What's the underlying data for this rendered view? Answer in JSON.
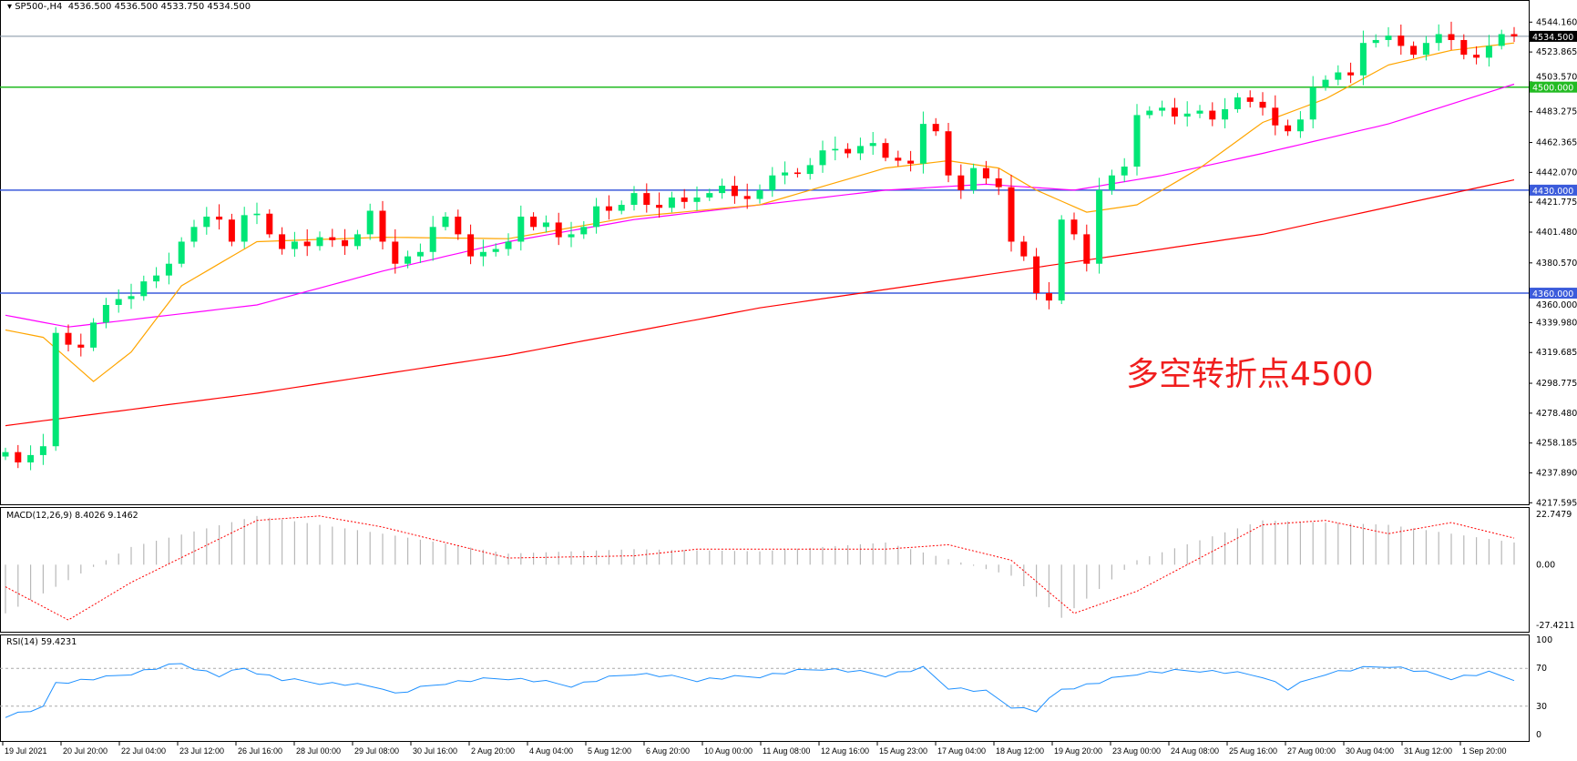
{
  "header": {
    "symbol": "SP500-,H4",
    "ohlc": "4536.500 4536.500 4533.750 4534.500"
  },
  "annotation": "多空转折点4500",
  "colors": {
    "bull": "#00e676",
    "bear": "#ff0000",
    "ma_fast": "#ffa500",
    "ma_mid": "#ff00ff",
    "ma_slow": "#ff0000",
    "support": "#3b5bdb",
    "pivot": "#22bb22",
    "price_line": "#8090a0",
    "macd_hist": "#b8b8b8",
    "macd_signal": "#ff0000",
    "rsi": "#1e90ff"
  },
  "chart_data": [
    {
      "type": "candlestick",
      "title": "SP500-,H4",
      "ylim": [
        4217.595,
        4544.16
      ],
      "y_ticks": [
        "4544.160",
        "4523.865",
        "4503.570",
        "4483.275",
        "4462.365",
        "4442.070",
        "4421.775",
        "4401.480",
        "4380.570",
        "4360.000",
        "4339.980",
        "4319.685",
        "4298.775",
        "4278.480",
        "4258.185",
        "4237.890",
        "4217.595"
      ],
      "x_ticks": [
        "19 Jul 2021",
        "20 Jul 20:00",
        "22 Jul 04:00",
        "23 Jul 12:00",
        "26 Jul 16:00",
        "28 Jul 00:00",
        "29 Jul 08:00",
        "30 Jul 16:00",
        "2 Aug 20:00",
        "4 Aug 04:00",
        "5 Aug 12:00",
        "6 Aug 20:00",
        "10 Aug 00:00",
        "11 Aug 08:00",
        "12 Aug 16:00",
        "15 Aug 23:00",
        "17 Aug 04:00",
        "18 Aug 12:00",
        "19 Aug 20:00",
        "23 Aug 00:00",
        "24 Aug 08:00",
        "25 Aug 16:00",
        "27 Aug 00:00",
        "30 Aug 04:00",
        "31 Aug 12:00",
        "1 Sep 20:00"
      ],
      "closes": [
        4252,
        4245,
        4250,
        4256,
        4333,
        4325,
        4323,
        4340,
        4352,
        4356,
        4358,
        4368,
        4372,
        4380,
        4395,
        4405,
        4412,
        4410,
        4395,
        4413,
        4414,
        4400,
        4390,
        4395,
        4392,
        4398,
        4396,
        4392,
        4400,
        4416,
        4395,
        4380,
        4385,
        4388,
        4405,
        4412,
        4400,
        4385,
        4388,
        4390,
        4395,
        4412,
        4405,
        4408,
        4398,
        4400,
        4405,
        4419,
        4416,
        4420,
        4428,
        4420,
        4418,
        4425,
        4422,
        4425,
        4428,
        4433,
        4426,
        4424,
        4430,
        4440,
        4442,
        4441,
        4447,
        4457,
        4458,
        4455,
        4460,
        4462,
        4452,
        4450,
        4448,
        4475,
        4470,
        4440,
        4430,
        4445,
        4438,
        4432,
        4395,
        4385,
        4360,
        4355,
        4410,
        4400,
        4380,
        4430,
        4440,
        4446,
        4481,
        4484,
        4486,
        4480,
        4482,
        4484,
        4478,
        4485,
        4493,
        4490,
        4486,
        4474,
        4470,
        4478,
        4500,
        4505,
        4510,
        4508,
        4530,
        4532,
        4535,
        4528,
        4522,
        4530,
        4536,
        4532,
        4522,
        4520,
        4528,
        4536,
        4534.5
      ],
      "moving_averages": {
        "fast": [
          [
            0,
            4335
          ],
          [
            3,
            4330
          ],
          [
            7,
            4300
          ],
          [
            10,
            4320
          ],
          [
            14,
            4365
          ],
          [
            20,
            4395
          ],
          [
            30,
            4398
          ],
          [
            40,
            4397
          ],
          [
            50,
            4412
          ],
          [
            60,
            4420
          ],
          [
            70,
            4445
          ],
          [
            75,
            4450
          ],
          [
            79,
            4445
          ],
          [
            82,
            4430
          ],
          [
            86,
            4415
          ],
          [
            90,
            4420
          ],
          [
            95,
            4445
          ],
          [
            100,
            4476
          ],
          [
            105,
            4492
          ],
          [
            110,
            4515
          ],
          [
            115,
            4525
          ],
          [
            120,
            4530
          ]
        ],
        "mid": [
          [
            0,
            4345
          ],
          [
            5,
            4337
          ],
          [
            10,
            4342
          ],
          [
            20,
            4352
          ],
          [
            30,
            4375
          ],
          [
            40,
            4395
          ],
          [
            50,
            4410
          ],
          [
            60,
            4420
          ],
          [
            70,
            4430
          ],
          [
            78,
            4434
          ],
          [
            85,
            4430
          ],
          [
            92,
            4440
          ],
          [
            100,
            4455
          ],
          [
            110,
            4475
          ],
          [
            120,
            4502
          ]
        ],
        "slow": [
          [
            0,
            4270
          ],
          [
            20,
            4292
          ],
          [
            40,
            4318
          ],
          [
            60,
            4350
          ],
          [
            80,
            4375
          ],
          [
            100,
            4400
          ],
          [
            120,
            4437
          ]
        ]
      },
      "levels": [
        {
          "label": "4534.500",
          "value": 4534.5,
          "kind": "price_line"
        },
        {
          "label": "4500.000",
          "value": 4500,
          "kind": "pivot"
        },
        {
          "label": "4430.000",
          "value": 4430,
          "kind": "support"
        },
        {
          "label": "4360.000",
          "value": 4360,
          "kind": "support"
        }
      ]
    },
    {
      "type": "bar",
      "title": "MACD(12,26,9) 8.4026 9.1462",
      "ylim": [
        -27.4211,
        22.7479
      ],
      "y_ticks": [
        "22.7479",
        "0.00",
        "-27.4211"
      ],
      "histogram": [
        [
          0,
          -22
        ],
        [
          10,
          8
        ],
        [
          20,
          22
        ],
        [
          30,
          14
        ],
        [
          40,
          5
        ],
        [
          50,
          7
        ],
        [
          60,
          6
        ],
        [
          70,
          10
        ],
        [
          80,
          -5
        ],
        [
          84,
          -24
        ],
        [
          90,
          2
        ],
        [
          100,
          20
        ],
        [
          110,
          18
        ],
        [
          120,
          10
        ]
      ],
      "signal": [
        [
          0,
          -10
        ],
        [
          5,
          -25
        ],
        [
          10,
          -8
        ],
        [
          20,
          20
        ],
        [
          25,
          22
        ],
        [
          30,
          17
        ],
        [
          40,
          3
        ],
        [
          50,
          4
        ],
        [
          55,
          7
        ],
        [
          70,
          7
        ],
        [
          75,
          9
        ],
        [
          80,
          2
        ],
        [
          85,
          -22
        ],
        [
          90,
          -12
        ],
        [
          100,
          18
        ],
        [
          105,
          20
        ],
        [
          110,
          14
        ],
        [
          115,
          19
        ],
        [
          120,
          12
        ]
      ]
    },
    {
      "type": "line",
      "title": "RSI(14) 59.4231",
      "ylim": [
        0,
        100
      ],
      "y_ticks": [
        "100",
        "70",
        "30",
        "0"
      ],
      "levels": [
        70,
        30
      ],
      "values": [
        [
          0,
          20
        ],
        [
          3,
          28
        ],
        [
          4,
          55
        ],
        [
          8,
          60
        ],
        [
          14,
          75
        ],
        [
          17,
          62
        ],
        [
          19,
          70
        ],
        [
          22,
          58
        ],
        [
          30,
          50
        ],
        [
          31,
          43
        ],
        [
          35,
          55
        ],
        [
          40,
          60
        ],
        [
          45,
          52
        ],
        [
          50,
          65
        ],
        [
          55,
          58
        ],
        [
          60,
          62
        ],
        [
          65,
          70
        ],
        [
          70,
          63
        ],
        [
          73,
          70
        ],
        [
          75,
          50
        ],
        [
          78,
          45
        ],
        [
          80,
          30
        ],
        [
          82,
          25
        ],
        [
          84,
          48
        ],
        [
          87,
          55
        ],
        [
          90,
          65
        ],
        [
          95,
          68
        ],
        [
          100,
          62
        ],
        [
          102,
          48
        ],
        [
          105,
          65
        ],
        [
          110,
          73
        ],
        [
          115,
          60
        ],
        [
          118,
          65
        ],
        [
          120,
          59
        ]
      ]
    }
  ]
}
